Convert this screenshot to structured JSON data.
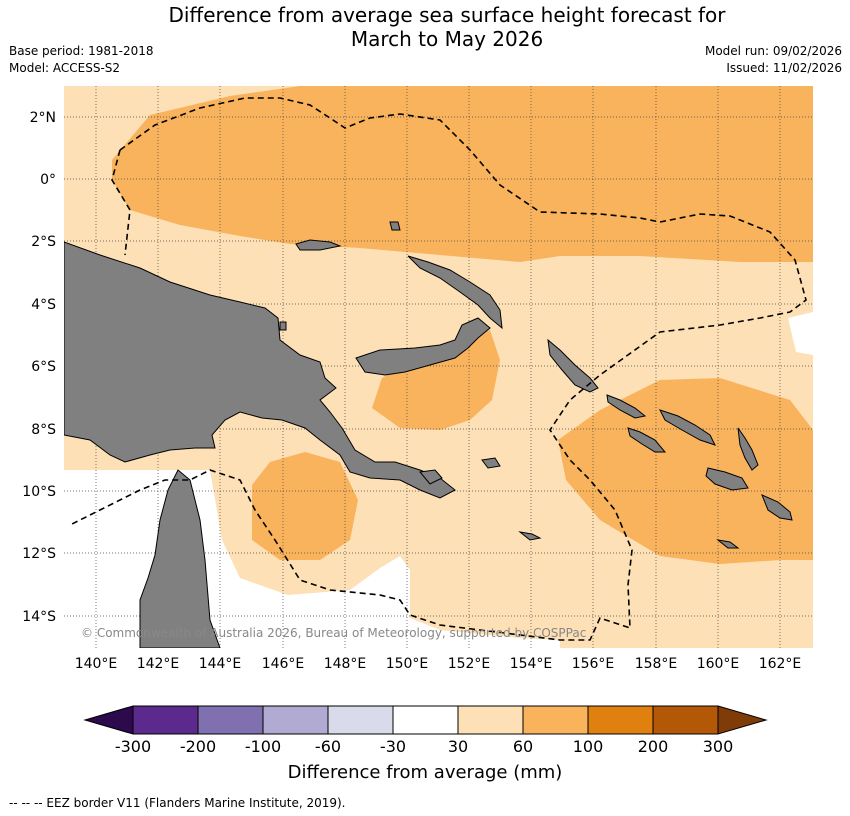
{
  "header": {
    "title_line1": "Difference from average sea surface height forecast for",
    "title_line2": "March to May 2026",
    "base_period": "Base period: 1981-2018",
    "model": "Model: ACCESS-S2",
    "model_run": "Model run: 09/02/2026",
    "issued": "Issued: 11/02/2026"
  },
  "map": {
    "lat_labels": [
      "2°N",
      "0°",
      "2°S",
      "4°S",
      "6°S",
      "8°S",
      "10°S",
      "12°S",
      "14°S"
    ],
    "lon_labels": [
      "140°E",
      "142°E",
      "144°E",
      "146°E",
      "148°E",
      "150°E",
      "152°E",
      "154°E",
      "156°E",
      "158°E",
      "160°E",
      "162°E"
    ],
    "copyright": "© Commonwealth of Australia 2026, Bureau of Meteorology, supported by COSPPac",
    "colors": {
      "land": "#808080",
      "band_30_60": "#fde0b6",
      "band_60_100": "#f8b35c",
      "ocean_white": "#ffffff"
    }
  },
  "colorbar": {
    "ticks": [
      "-300",
      "-200",
      "-100",
      "-60",
      "-30",
      "30",
      "60",
      "100",
      "200",
      "300"
    ],
    "colors": [
      "#2d0a4b",
      "#5b2a8c",
      "#8070b0",
      "#b1aad3",
      "#d9dbea",
      "#ffffff",
      "#fde0b6",
      "#f8b35c",
      "#e0810f",
      "#b35806",
      "#7f3b08"
    ],
    "label": "Difference from average (mm)"
  },
  "footer": {
    "legend_text": "--  --  -- EEZ border V11 (Flanders Marine Institute, 2019)."
  }
}
